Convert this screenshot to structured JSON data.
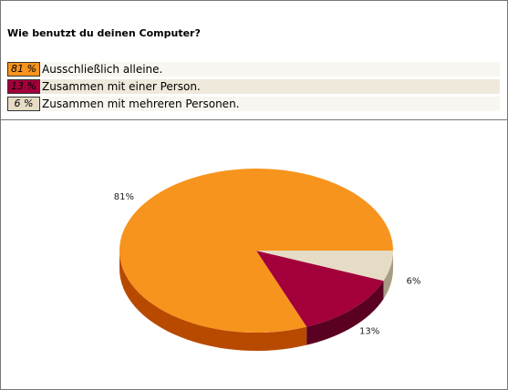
{
  "chart_data": {
    "type": "pie",
    "title": "Wie benutzt du deinen Computer?",
    "categories": [
      "Ausschließlich alleine.",
      "Zusammen mit einer Person.",
      "Zusammen mit mehreren Personen."
    ],
    "values": [
      81,
      13,
      6
    ],
    "value_labels": [
      "81%",
      "13%",
      "6%"
    ],
    "legend_value_labels": [
      "81 %",
      "13 %",
      "6 %"
    ],
    "colors": [
      "#f7941d",
      "#a3003b",
      "#e6dcc6"
    ],
    "side_colors": [
      "#b84a00",
      "#5a0022",
      "#a89c84"
    ]
  }
}
